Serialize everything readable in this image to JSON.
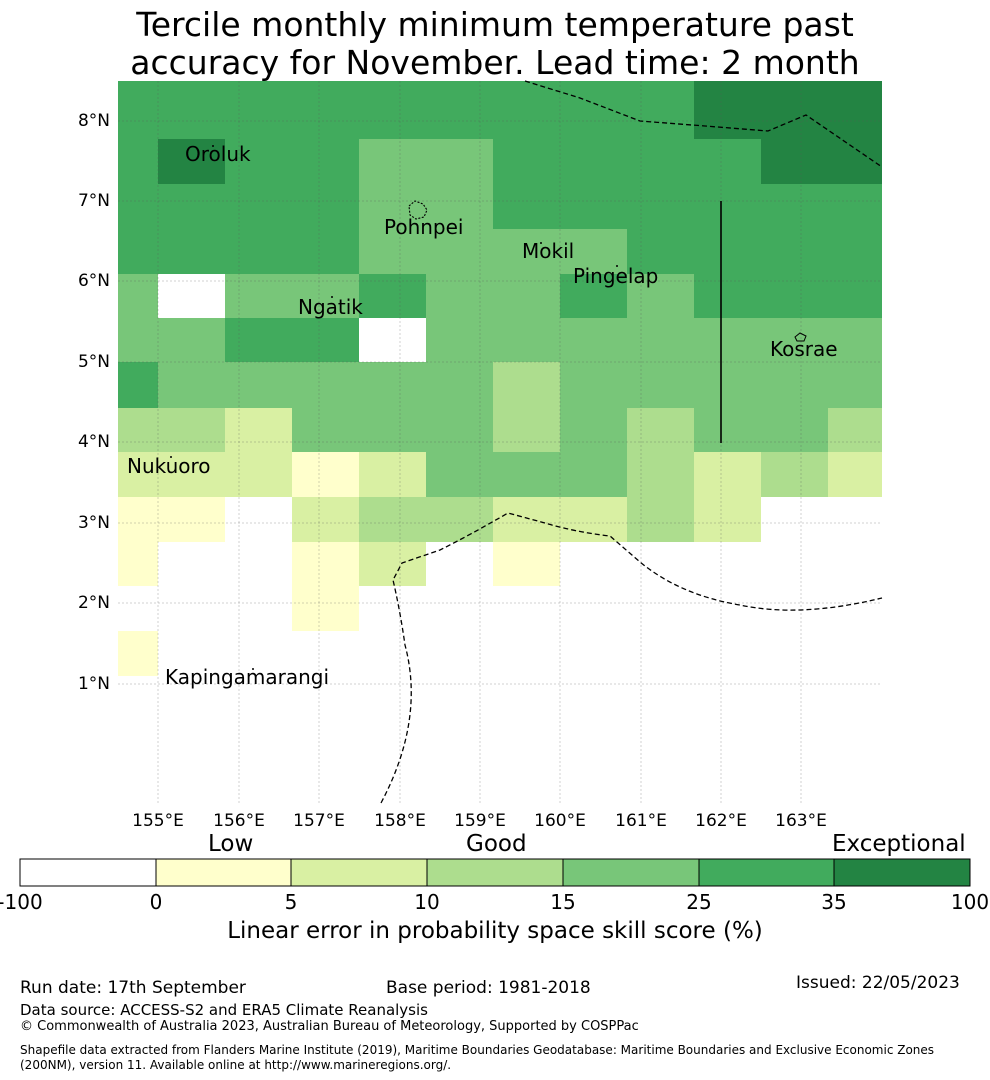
{
  "title": {
    "line1": "Tercile monthly minimum temperature past",
    "line2": "accuracy for November. Lead time: 2 month"
  },
  "map": {
    "lon_ticks": [
      "155°E",
      "156°E",
      "157°E",
      "158°E",
      "159°E",
      "160°E",
      "161°E",
      "162°E",
      "163°E"
    ],
    "lat_ticks": [
      "8°N",
      "7°N",
      "6°N",
      "5°N",
      "4°N",
      "3°N",
      "2°N",
      "1°N"
    ],
    "places": [
      {
        "name": "Oroluk"
      },
      {
        "name": "Pohnpei"
      },
      {
        "name": "Mokil"
      },
      {
        "name": "Pingelap"
      },
      {
        "name": "Ngatik"
      },
      {
        "name": "Kosrae"
      },
      {
        "name": "Nukuoro"
      },
      {
        "name": "Kapingamarangi"
      }
    ]
  },
  "colors": {
    "c0": "#ffffff",
    "c1": "#ffffcc",
    "c2": "#d9f0a3",
    "c3": "#addd8e",
    "c4": "#78c679",
    "c5": "#41ab5d",
    "c6": "#238443"
  },
  "colorbar": {
    "categories": [
      "Low",
      "Good",
      "Exceptional"
    ],
    "ticks": [
      "-100",
      "0",
      "5",
      "10",
      "15",
      "25",
      "35",
      "100"
    ],
    "label": "Linear error in probability space skill score (%)"
  },
  "footer": {
    "run_date": "Run date: 17th September",
    "base_period": "Base period: 1981-2018",
    "issued": "Issued: 22/05/2023",
    "data_source": "Data source: ACCESS-S2 and ERA5 Climate Reanalysis",
    "copyright": "© Commonwealth of Australia 2023, Australian Bureau of Meteorology, Supported by COSPPac",
    "shapefile": "Shapefile data extracted from Flanders Marine Institute (2019), Maritime Boundaries Geodatabase: Maritime Boundaries and Exclusive Economic Zones (200NM), version 11. Available online at http://www.marineregions.org/."
  }
}
